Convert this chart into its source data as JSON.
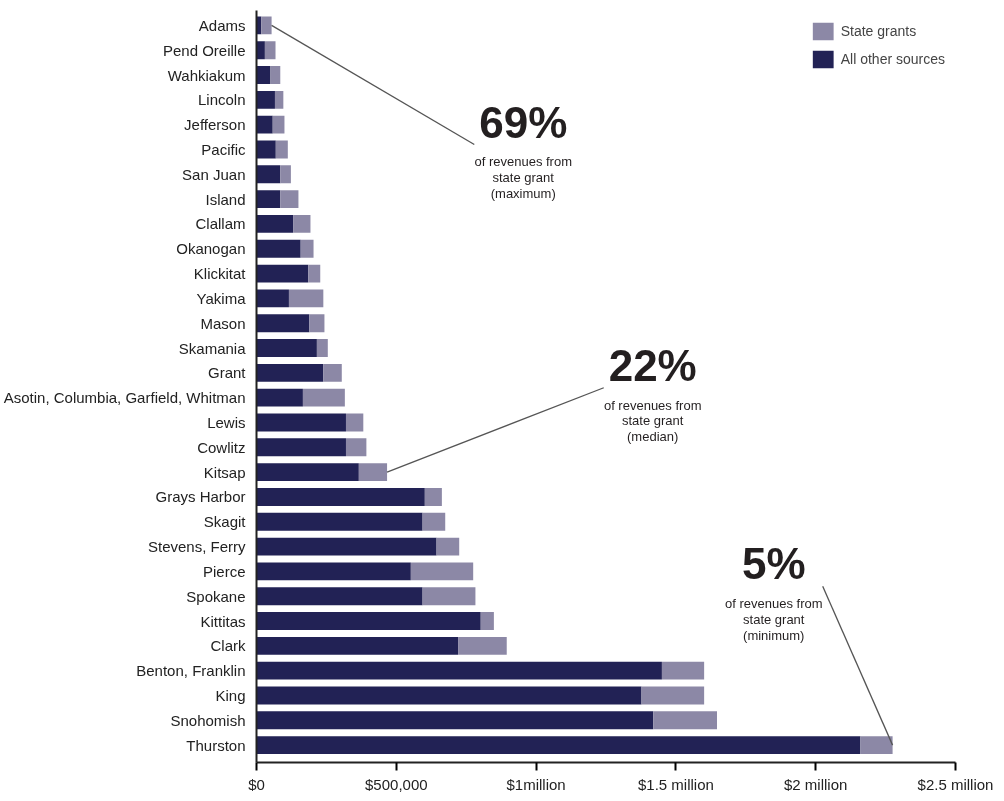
{
  "chart_data": {
    "type": "bar",
    "orientation": "horizontal",
    "stacked": true,
    "categories": [
      "Adams",
      "Pend Oreille",
      "Wahkiakum",
      "Lincoln",
      "Jefferson",
      "Pacific",
      "San Juan",
      "Island",
      "Clallam",
      "Okanogan",
      "Klickitat",
      "Yakima",
      "Mason",
      "Skamania",
      "Grant",
      "Asotin, Columbia, Garfield, Whitman",
      "Lewis",
      "Cowlitz",
      "Kitsap",
      "Grays Harbor",
      "Skagit",
      "Stevens, Ferry",
      "Pierce",
      "Spokane",
      "Kittitas",
      "Clark",
      "Benton, Franklin",
      "King",
      "Snohomish",
      "Thurston"
    ],
    "series": [
      {
        "name": "All other sources",
        "color": "#222255",
        "values": [
          17000,
          30000,
          50000,
          66000,
          58000,
          69000,
          85000,
          85000,
          131000,
          158000,
          185000,
          116000,
          189000,
          216000,
          239000,
          166000,
          320000,
          320000,
          366000,
          602000,
          594000,
          644000,
          552000,
          594000,
          802000,
          721000,
          1450000,
          1377000,
          1419000,
          2160000
        ]
      },
      {
        "name": "State grants",
        "color": "#8c88a6",
        "values": [
          37000,
          38000,
          35000,
          30000,
          42000,
          43000,
          38000,
          65000,
          62000,
          46000,
          43000,
          123000,
          54000,
          39000,
          66000,
          150000,
          62000,
          73000,
          101000,
          61000,
          81000,
          81000,
          223000,
          189000,
          47000,
          174000,
          151000,
          224000,
          228000,
          115000
        ]
      }
    ],
    "xlim": [
      0,
      2500000
    ],
    "xticks": [
      {
        "value": 0,
        "label": "$0"
      },
      {
        "value": 500000,
        "label": "$500,000"
      },
      {
        "value": 1000000,
        "label": "$1million"
      },
      {
        "value": 1500000,
        "label": "$1.5 million"
      },
      {
        "value": 2000000,
        "label": "$2 million"
      },
      {
        "value": 2500000,
        "label": "$2.5 million"
      }
    ],
    "grid": false,
    "legend": "top right",
    "annotations": [
      {
        "text": "69%\nof revenues from\nstate grant\n(maximum)",
        "x": 54000,
        "y": "Adams"
      },
      {
        "text": "22%\nof revenues from\nstate grant\n(median)",
        "x": 467000,
        "y": "Kitsap"
      },
      {
        "text": "5%\nof revenues from\nstate grant\n(minimum)",
        "x": 2275000,
        "y": "Thurston"
      }
    ]
  }
}
